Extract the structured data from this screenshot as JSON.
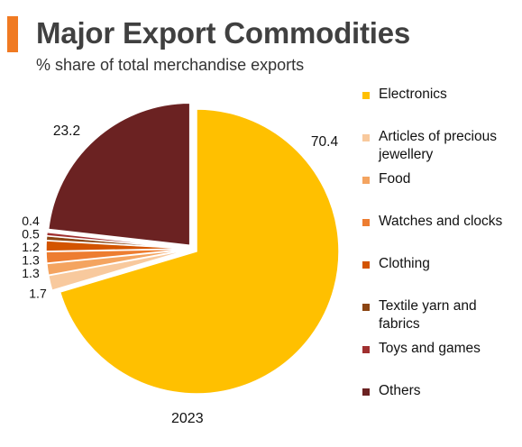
{
  "header": {
    "title": "Major Export Commodities",
    "subtitle": "% share of total merchandise exports",
    "accent_color": "#F07A22"
  },
  "chart_data": {
    "type": "pie",
    "title": "Major Export Commodities",
    "subtitle": "% share of total merchandise exports",
    "xlabel": "2023",
    "legend_position": "right",
    "exploded_slices": "all",
    "slices": [
      {
        "label": "Electronics",
        "value": 70.4,
        "display": "70.4",
        "color": "#FFC000"
      },
      {
        "label": "Articles of precious jewellery",
        "value": 1.7,
        "display": "1.7",
        "color": "#F8C99D"
      },
      {
        "label": "Food",
        "value": 1.3,
        "display": "1.3",
        "color": "#F4A460"
      },
      {
        "label": "Watches and clocks",
        "value": 1.3,
        "display": "1.3",
        "color": "#ED7D31"
      },
      {
        "label": "Clothing",
        "value": 1.2,
        "display": "1.2",
        "color": "#D35400"
      },
      {
        "label": "Textile yarn and fabrics",
        "value": 0.5,
        "display": "0.5",
        "color": "#8B4513"
      },
      {
        "label": "Toys and games",
        "value": 0.4,
        "display": "0.4",
        "color": "#A03030"
      },
      {
        "label": "Others",
        "value": 23.2,
        "display": "23.2",
        "color": "#6B2222"
      }
    ]
  }
}
